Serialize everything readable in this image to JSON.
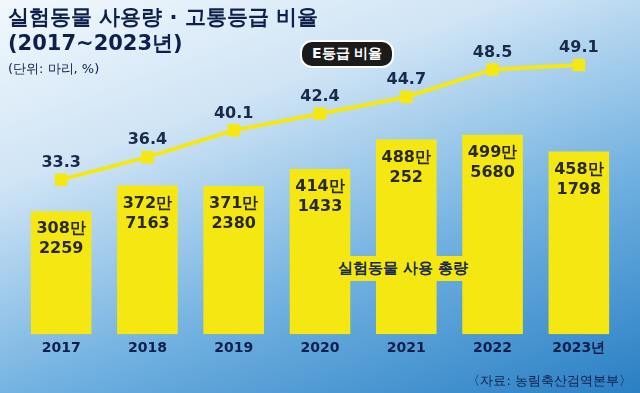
{
  "chart_data": {
    "type": "bar",
    "title": "실험동물 사용량 · 고통등급 비율",
    "subtitle": "(2017~2023년)",
    "annotations": [
      "(단위: 마리, %)",
      "〈자료: 농림축산검역본부〉"
    ],
    "categories": [
      "2017",
      "2018",
      "2019",
      "2020",
      "2021",
      "2022",
      "2023년"
    ],
    "series": [
      {
        "name": "실험동물 사용 총량",
        "type": "bar",
        "color": "#f5e812",
        "values": [
          3082259,
          3727163,
          3712380,
          4141433,
          4880252,
          4995680,
          4581798
        ],
        "value_labels": [
          "308만\n2259",
          "372만\n7163",
          "371만\n2380",
          "414만\n1433",
          "488만\n252",
          "499만\n5680",
          "458만\n1798"
        ]
      },
      {
        "name": "E등급 비율",
        "type": "line",
        "color": "#f5e812",
        "marker": "square",
        "axis": "y2",
        "values": [
          33.3,
          36.4,
          40.1,
          42.4,
          44.7,
          48.5,
          49.1
        ]
      }
    ],
    "ylim": [
      0,
      8000000
    ],
    "y2lim": [
      12,
      56
    ],
    "grid": false,
    "data_labels": true,
    "tick_labels": "x"
  }
}
